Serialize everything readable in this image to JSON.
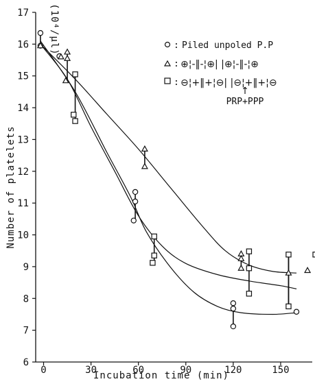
{
  "chart_data": {
    "type": "scatter",
    "xlabel": "Incubation time (min)",
    "ylabel": "Number of platelets",
    "ylabel_unit": "(10⁴/µl)",
    "xlim": [
      -5,
      170
    ],
    "ylim": [
      6,
      17
    ],
    "xticks": [
      0,
      30,
      60,
      90,
      120,
      150
    ],
    "yticks": [
      6,
      7,
      8,
      9,
      10,
      11,
      12,
      13,
      14,
      15,
      16,
      17
    ],
    "grid": false,
    "legend_position": "top-right",
    "legend": {
      "row1": {
        "marker": "○",
        "text": "Piled unpoled P.P"
      },
      "row2": {
        "marker": "△",
        "pattern": "⊕¦-‖-¦⊕| |⊕¦-‖-¦⊕"
      },
      "row3": {
        "marker": "□",
        "pattern": "⊖¦+‖+¦⊖| |⊖¦+‖+¦⊖"
      },
      "annotation_arrow": "↑",
      "annotation": "PRP+PPP"
    },
    "series": [
      {
        "marker": "circle",
        "points": [
          [
            -2,
            16.35
          ],
          [
            -2,
            15.95
          ],
          [
            10,
            15.62
          ],
          [
            58,
            11.35
          ],
          [
            58,
            11.05
          ],
          [
            57,
            10.45
          ],
          [
            120,
            7.85
          ],
          [
            120,
            7.68
          ],
          [
            120,
            7.12
          ],
          [
            160,
            7.58
          ]
        ],
        "error_bars": [
          [
            -2,
            15.95,
            16.35
          ],
          [
            58,
            10.45,
            11.35
          ],
          [
            120,
            7.12,
            7.85
          ]
        ],
        "curve": [
          [
            -2,
            16.1
          ],
          [
            20,
            14.5
          ],
          [
            40,
            12.6
          ],
          [
            55,
            11.2
          ],
          [
            65,
            10.1
          ],
          [
            80,
            9.0
          ],
          [
            95,
            8.2
          ],
          [
            110,
            7.75
          ],
          [
            125,
            7.55
          ],
          [
            145,
            7.5
          ],
          [
            160,
            7.55
          ]
        ]
      },
      {
        "marker": "triangle",
        "points": [
          [
            -2,
            15.95
          ],
          [
            11,
            15.6
          ],
          [
            15,
            15.75
          ],
          [
            15,
            15.55
          ],
          [
            14,
            14.85
          ],
          [
            64,
            12.7
          ],
          [
            64,
            12.15
          ],
          [
            125,
            9.4
          ],
          [
            125,
            9.25
          ],
          [
            125,
            8.95
          ],
          [
            155,
            8.8
          ],
          [
            167,
            8.88
          ]
        ],
        "error_bars": [
          [
            15,
            14.85,
            15.75
          ],
          [
            64,
            12.15,
            12.7
          ],
          [
            125,
            8.95,
            9.4
          ],
          [
            155,
            7.75,
            9.4
          ]
        ],
        "curve": [
          [
            -2,
            16.0
          ],
          [
            20,
            14.9
          ],
          [
            40,
            13.8
          ],
          [
            60,
            12.7
          ],
          [
            80,
            11.5
          ],
          [
            100,
            10.3
          ],
          [
            115,
            9.5
          ],
          [
            130,
            9.05
          ],
          [
            145,
            8.85
          ],
          [
            160,
            8.8
          ]
        ]
      },
      {
        "marker": "square",
        "points": [
          [
            20,
            15.05
          ],
          [
            19,
            13.78
          ],
          [
            20,
            13.58
          ],
          [
            70,
            9.95
          ],
          [
            70,
            9.35
          ],
          [
            69,
            9.12
          ],
          [
            130,
            9.48
          ],
          [
            130,
            8.95
          ],
          [
            130,
            8.15
          ],
          [
            155,
            9.38
          ],
          [
            155,
            7.75
          ],
          [
            172,
            9.38
          ]
        ],
        "error_bars": [
          [
            20,
            13.58,
            15.05
          ],
          [
            70,
            9.12,
            9.95
          ],
          [
            130,
            8.15,
            9.48
          ],
          [
            155,
            7.75,
            9.38
          ]
        ],
        "curve": [
          [
            -2,
            16.0
          ],
          [
            15,
            14.9
          ],
          [
            30,
            13.4
          ],
          [
            45,
            12.0
          ],
          [
            60,
            10.6
          ],
          [
            75,
            9.65
          ],
          [
            90,
            9.1
          ],
          [
            110,
            8.75
          ],
          [
            130,
            8.55
          ],
          [
            150,
            8.4
          ],
          [
            160,
            8.3
          ]
        ]
      }
    ]
  }
}
